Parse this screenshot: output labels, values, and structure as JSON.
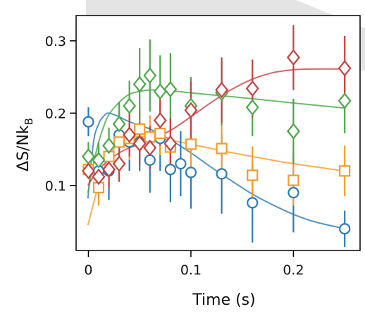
{
  "chart_data": {
    "type": "scatter",
    "title": "",
    "xlabel": "Time (s)",
    "ylabel": "ΔS/Nk_B",
    "ylabel_main": "ΔS/Nk",
    "ylabel_sub": "B",
    "xlim": [
      -0.012,
      0.265
    ],
    "ylim": [
      0.01,
      0.335
    ],
    "x_ticks": [
      0,
      0.1,
      0.2
    ],
    "x_tick_labels": [
      "0",
      "0.1",
      "0.2"
    ],
    "y_ticks": [
      0.1,
      0.2,
      0.3
    ],
    "y_tick_labels": [
      "0.1",
      "0.2",
      "0.3"
    ],
    "grid": false,
    "legend": "none",
    "series": [
      {
        "marker": "circle",
        "color": "#2b7bb9",
        "points": [
          {
            "x": 0.0,
            "y": 0.188,
            "err": 0.02
          },
          {
            "x": 0.01,
            "y": 0.12,
            "err": 0.035
          },
          {
            "x": 0.02,
            "y": 0.12,
            "err": 0.04
          },
          {
            "x": 0.03,
            "y": 0.17,
            "err": 0.04
          },
          {
            "x": 0.04,
            "y": 0.16,
            "err": 0.04
          },
          {
            "x": 0.05,
            "y": 0.16,
            "err": 0.04
          },
          {
            "x": 0.06,
            "y": 0.135,
            "err": 0.045
          },
          {
            "x": 0.07,
            "y": 0.165,
            "err": 0.045
          },
          {
            "x": 0.08,
            "y": 0.122,
            "err": 0.045
          },
          {
            "x": 0.09,
            "y": 0.13,
            "err": 0.045
          },
          {
            "x": 0.1,
            "y": 0.118,
            "err": 0.05
          },
          {
            "x": 0.13,
            "y": 0.116,
            "err": 0.055
          },
          {
            "x": 0.16,
            "y": 0.076,
            "err": 0.055
          },
          {
            "x": 0.2,
            "y": 0.09,
            "err": 0.055
          },
          {
            "x": 0.25,
            "y": 0.04,
            "err": 0.025
          }
        ],
        "fit": [
          [
            -0.0005,
            0.082
          ],
          [
            0.005,
            0.16
          ],
          [
            0.01,
            0.185
          ],
          [
            0.015,
            0.196
          ],
          [
            0.02,
            0.2
          ],
          [
            0.03,
            0.195
          ],
          [
            0.04,
            0.188
          ],
          [
            0.06,
            0.178
          ],
          [
            0.08,
            0.163
          ],
          [
            0.1,
            0.145
          ],
          [
            0.12,
            0.125
          ],
          [
            0.14,
            0.106
          ],
          [
            0.16,
            0.088
          ],
          [
            0.18,
            0.073
          ],
          [
            0.2,
            0.06
          ],
          [
            0.22,
            0.05
          ],
          [
            0.25,
            0.04
          ]
        ]
      },
      {
        "marker": "square",
        "color": "#f39c2f",
        "points": [
          {
            "x": 0.0,
            "y": 0.122,
            "err": 0.01
          },
          {
            "x": 0.01,
            "y": 0.097,
            "err": 0.025
          },
          {
            "x": 0.02,
            "y": 0.14,
            "err": 0.025
          },
          {
            "x": 0.03,
            "y": 0.16,
            "err": 0.03
          },
          {
            "x": 0.04,
            "y": 0.165,
            "err": 0.03
          },
          {
            "x": 0.05,
            "y": 0.178,
            "err": 0.03
          },
          {
            "x": 0.06,
            "y": 0.167,
            "err": 0.03
          },
          {
            "x": 0.07,
            "y": 0.172,
            "err": 0.03
          },
          {
            "x": 0.08,
            "y": 0.153,
            "err": 0.03
          },
          {
            "x": 0.1,
            "y": 0.157,
            "err": 0.035
          },
          {
            "x": 0.13,
            "y": 0.151,
            "err": 0.04
          },
          {
            "x": 0.16,
            "y": 0.114,
            "err": 0.04
          },
          {
            "x": 0.2,
            "y": 0.107,
            "err": 0.035
          },
          {
            "x": 0.25,
            "y": 0.12,
            "err": 0.035
          }
        ],
        "fit": [
          [
            -0.0005,
            0.045
          ],
          [
            0.005,
            0.075
          ],
          [
            0.01,
            0.102
          ],
          [
            0.015,
            0.123
          ],
          [
            0.02,
            0.14
          ],
          [
            0.03,
            0.158
          ],
          [
            0.04,
            0.165
          ],
          [
            0.05,
            0.168
          ],
          [
            0.07,
            0.165
          ],
          [
            0.1,
            0.157
          ],
          [
            0.13,
            0.148
          ],
          [
            0.16,
            0.14
          ],
          [
            0.2,
            0.13
          ],
          [
            0.25,
            0.12
          ]
        ]
      },
      {
        "marker": "diamond",
        "color": "#4aa84a",
        "points": [
          {
            "x": 0.0,
            "y": 0.14,
            "err": 0.02
          },
          {
            "x": 0.01,
            "y": 0.135,
            "err": 0.025
          },
          {
            "x": 0.02,
            "y": 0.155,
            "err": 0.025
          },
          {
            "x": 0.03,
            "y": 0.185,
            "err": 0.03
          },
          {
            "x": 0.04,
            "y": 0.21,
            "err": 0.035
          },
          {
            "x": 0.05,
            "y": 0.24,
            "err": 0.05
          },
          {
            "x": 0.06,
            "y": 0.252,
            "err": 0.05
          },
          {
            "x": 0.07,
            "y": 0.23,
            "err": 0.05
          },
          {
            "x": 0.08,
            "y": 0.233,
            "err": 0.05
          },
          {
            "x": 0.1,
            "y": 0.21,
            "err": 0.04
          },
          {
            "x": 0.13,
            "y": 0.228,
            "err": 0.045
          },
          {
            "x": 0.16,
            "y": 0.208,
            "err": 0.04
          },
          {
            "x": 0.2,
            "y": 0.175,
            "err": 0.045
          },
          {
            "x": 0.25,
            "y": 0.217,
            "err": 0.045
          }
        ],
        "fit": [
          [
            -0.0005,
            0.09
          ],
          [
            0.005,
            0.13
          ],
          [
            0.01,
            0.16
          ],
          [
            0.015,
            0.182
          ],
          [
            0.02,
            0.198
          ],
          [
            0.03,
            0.215
          ],
          [
            0.04,
            0.226
          ],
          [
            0.05,
            0.23
          ],
          [
            0.06,
            0.232
          ],
          [
            0.08,
            0.231
          ],
          [
            0.1,
            0.228
          ],
          [
            0.13,
            0.224
          ],
          [
            0.16,
            0.22
          ],
          [
            0.2,
            0.214
          ],
          [
            0.25,
            0.207
          ]
        ]
      },
      {
        "marker": "diamond",
        "color": "#c94040",
        "points": [
          {
            "x": 0.0,
            "y": 0.12,
            "err": 0.01
          },
          {
            "x": 0.01,
            "y": 0.112,
            "err": 0.02
          },
          {
            "x": 0.02,
            "y": 0.122,
            "err": 0.025
          },
          {
            "x": 0.03,
            "y": 0.13,
            "err": 0.025
          },
          {
            "x": 0.04,
            "y": 0.17,
            "err": 0.03
          },
          {
            "x": 0.05,
            "y": 0.158,
            "err": 0.03
          },
          {
            "x": 0.06,
            "y": 0.152,
            "err": 0.03
          },
          {
            "x": 0.07,
            "y": 0.19,
            "err": 0.035
          },
          {
            "x": 0.08,
            "y": 0.158,
            "err": 0.035
          },
          {
            "x": 0.1,
            "y": 0.204,
            "err": 0.04
          },
          {
            "x": 0.13,
            "y": 0.232,
            "err": 0.045
          },
          {
            "x": 0.16,
            "y": 0.234,
            "err": 0.04
          },
          {
            "x": 0.2,
            "y": 0.277,
            "err": 0.045
          },
          {
            "x": 0.25,
            "y": 0.262,
            "err": 0.045
          }
        ],
        "fit": [
          [
            -0.0005,
            0.1
          ],
          [
            0.005,
            0.112
          ],
          [
            0.01,
            0.122
          ],
          [
            0.02,
            0.135
          ],
          [
            0.03,
            0.145
          ],
          [
            0.04,
            0.152
          ],
          [
            0.05,
            0.157
          ],
          [
            0.06,
            0.162
          ],
          [
            0.08,
            0.176
          ],
          [
            0.1,
            0.195
          ],
          [
            0.12,
            0.215
          ],
          [
            0.14,
            0.233
          ],
          [
            0.16,
            0.247
          ],
          [
            0.18,
            0.256
          ],
          [
            0.2,
            0.26
          ],
          [
            0.22,
            0.261
          ],
          [
            0.25,
            0.261
          ]
        ]
      }
    ]
  }
}
